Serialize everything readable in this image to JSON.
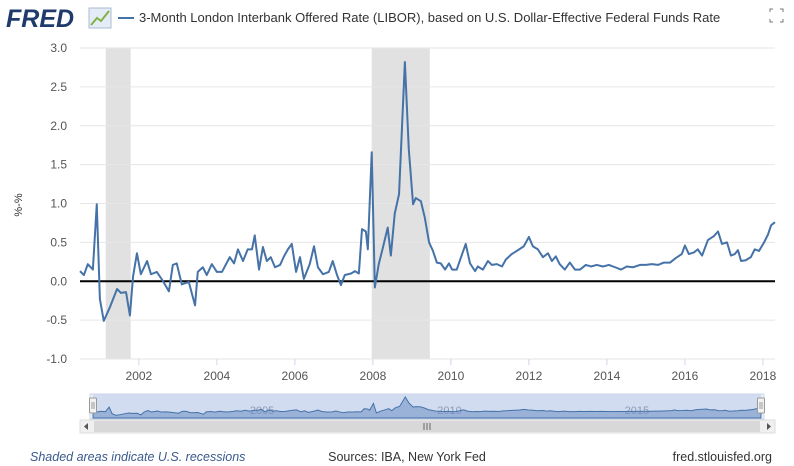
{
  "logo": "FRED",
  "footer": {
    "left": "Shaded areas indicate U.S. recessions",
    "center": "Sources: IBA, New York Fed",
    "right": "fred.stlouisfed.org"
  },
  "chart_data": {
    "type": "line",
    "y_label": "%-%",
    "x": [
      2000.49,
      2000.59,
      2000.69,
      2000.82,
      2000.92,
      2001.0,
      2001.1,
      2001.26,
      2001.44,
      2001.54,
      2001.67,
      2001.77,
      2001.85,
      2001.95,
      2002.05,
      2002.21,
      2002.31,
      2002.46,
      2002.62,
      2002.77,
      2002.87,
      2002.97,
      2003.1,
      2003.28,
      2003.44,
      2003.51,
      2003.64,
      2003.74,
      2003.87,
      2004.0,
      2004.13,
      2004.33,
      2004.44,
      2004.54,
      2004.67,
      2004.79,
      2004.9,
      2004.97,
      2005.08,
      2005.18,
      2005.28,
      2005.38,
      2005.49,
      2005.62,
      2005.72,
      2005.82,
      2005.92,
      2006.03,
      2006.13,
      2006.23,
      2006.38,
      2006.49,
      2006.59,
      2006.72,
      2006.87,
      2006.97,
      2007.08,
      2007.18,
      2007.28,
      2007.44,
      2007.54,
      2007.64,
      2007.72,
      2007.82,
      2007.87,
      2007.97,
      2008.05,
      2008.15,
      2008.26,
      2008.38,
      2008.46,
      2008.56,
      2008.67,
      2008.82,
      2008.92,
      2009.03,
      2009.1,
      2009.23,
      2009.33,
      2009.44,
      2009.54,
      2009.64,
      2009.74,
      2009.85,
      2009.95,
      2010.03,
      2010.15,
      2010.26,
      2010.38,
      2010.49,
      2010.62,
      2010.69,
      2010.82,
      2010.95,
      2011.05,
      2011.18,
      2011.31,
      2011.41,
      2011.56,
      2011.69,
      2011.87,
      2012.0,
      2012.1,
      2012.23,
      2012.36,
      2012.49,
      2012.59,
      2012.69,
      2012.79,
      2012.92,
      2013.05,
      2013.18,
      2013.31,
      2013.46,
      2013.59,
      2013.74,
      2013.9,
      2014.05,
      2014.21,
      2014.36,
      2014.51,
      2014.67,
      2014.85,
      2015.0,
      2015.15,
      2015.31,
      2015.46,
      2015.62,
      2015.77,
      2015.92,
      2016.0,
      2016.1,
      2016.23,
      2016.33,
      2016.44,
      2016.59,
      2016.74,
      2016.85,
      2016.95,
      2017.08,
      2017.18,
      2017.28,
      2017.36,
      2017.44,
      2017.56,
      2017.69,
      2017.79,
      2017.9,
      2018.03,
      2018.13,
      2018.21,
      2018.31
    ],
    "series": [
      {
        "name": "3-Month London Interbank Offered Rate (LIBOR), based on U.S. Dollar-Effective Federal Funds Rate",
        "color": "#4572a7",
        "values": [
          0.13,
          0.08,
          0.22,
          0.15,
          0.99,
          -0.23,
          -0.51,
          -0.33,
          -0.1,
          -0.15,
          -0.14,
          -0.44,
          0.06,
          0.36,
          0.09,
          0.26,
          0.09,
          0.12,
          0.0,
          -0.13,
          0.21,
          0.23,
          -0.04,
          -0.01,
          -0.31,
          0.12,
          0.18,
          0.08,
          0.22,
          0.12,
          0.12,
          0.31,
          0.23,
          0.41,
          0.26,
          0.41,
          0.41,
          0.59,
          0.15,
          0.44,
          0.26,
          0.31,
          0.18,
          0.21,
          0.32,
          0.41,
          0.48,
          0.12,
          0.31,
          0.03,
          0.22,
          0.45,
          0.18,
          0.09,
          0.12,
          0.26,
          0.08,
          -0.05,
          0.08,
          0.1,
          0.13,
          0.1,
          0.67,
          0.64,
          0.41,
          1.66,
          -0.08,
          0.22,
          0.44,
          0.69,
          0.33,
          0.87,
          1.12,
          2.82,
          1.7,
          0.99,
          1.07,
          1.03,
          0.82,
          0.5,
          0.39,
          0.24,
          0.23,
          0.15,
          0.23,
          0.15,
          0.15,
          0.31,
          0.48,
          0.23,
          0.13,
          0.19,
          0.15,
          0.26,
          0.21,
          0.22,
          0.19,
          0.28,
          0.35,
          0.39,
          0.45,
          0.57,
          0.45,
          0.41,
          0.31,
          0.36,
          0.26,
          0.32,
          0.22,
          0.15,
          0.24,
          0.15,
          0.15,
          0.21,
          0.19,
          0.21,
          0.19,
          0.21,
          0.18,
          0.15,
          0.19,
          0.18,
          0.21,
          0.21,
          0.22,
          0.21,
          0.24,
          0.24,
          0.3,
          0.35,
          0.46,
          0.35,
          0.37,
          0.41,
          0.33,
          0.53,
          0.58,
          0.64,
          0.48,
          0.5,
          0.33,
          0.35,
          0.4,
          0.26,
          0.27,
          0.31,
          0.41,
          0.39,
          0.5,
          0.6,
          0.72,
          0.76
        ]
      }
    ],
    "recessions": [
      [
        2001.15,
        2001.79
      ],
      [
        2007.97,
        2009.46
      ]
    ],
    "xlim": [
      2000.49,
      2018.31
    ],
    "xticks": [
      2002,
      2004,
      2006,
      2008,
      2010,
      2012,
      2014,
      2016,
      2018
    ],
    "ylim": [
      -1,
      3
    ],
    "yticks": [
      {
        "value": -1,
        "label": "-1.0"
      },
      -0.5,
      {
        "value": 0,
        "label": "0.0"
      },
      0.5,
      {
        "value": 1,
        "label": "1.0"
      },
      1.5,
      {
        "value": 2,
        "label": "2.0"
      },
      2.5,
      {
        "value": 3,
        "label": "3.0"
      }
    ],
    "grid": true,
    "navigator_ticks": [
      2005,
      2010,
      2015
    ]
  }
}
